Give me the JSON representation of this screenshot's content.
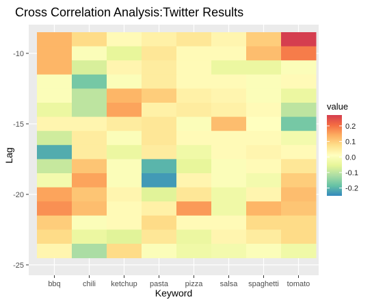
{
  "chart_data": {
    "type": "heatmap",
    "title": "Cross Correlation Analysis:Twitter Results",
    "xlabel": "Keyword",
    "ylabel": "Lag",
    "x_categories": [
      "bbq",
      "chili",
      "ketchup",
      "pasta",
      "pizza",
      "salsa",
      "spaghetti",
      "tomato"
    ],
    "y_values": [
      -9,
      -10,
      -11,
      -12,
      -13,
      -14,
      -15,
      -16,
      -17,
      -18,
      -19,
      -20,
      -21,
      -22,
      -23,
      -24
    ],
    "y_ticks": [
      -10,
      -15,
      -20,
      -25
    ],
    "y_tick_labels": [
      "-10",
      "-15",
      "-20",
      "-25"
    ],
    "ylim": [
      -25,
      -8.5
    ],
    "legend": {
      "title": "value",
      "placement": "right",
      "ticks": [
        0.2,
        0.1,
        0.0,
        -0.1,
        -0.2
      ],
      "tick_labels": [
        "0.2",
        "0.1",
        "0.0",
        "-0.1",
        "-0.2"
      ],
      "range": [
        -0.25,
        0.27
      ]
    },
    "colors": {
      "panel_background": "#ebebeb",
      "gridline": "#ffffff",
      "scale": [
        "#3288bd",
        "#66c2a5",
        "#abdda4",
        "#e6f598",
        "#ffffbf",
        "#fee08b",
        "#fdae61",
        "#f46d43",
        "#d53e4f"
      ]
    },
    "values_note_rows_top_to_bottom_lag": "-9 to -24",
    "values": [
      [
        0.13,
        0.08,
        0.02,
        0.04,
        0.06,
        0.03,
        0.1,
        0.27
      ],
      [
        0.13,
        0.0,
        -0.05,
        0.06,
        0.02,
        0.02,
        0.12,
        0.19
      ],
      [
        0.13,
        -0.07,
        0.03,
        0.05,
        0.02,
        -0.04,
        -0.04,
        0.0
      ],
      [
        0.0,
        -0.17,
        0.0,
        0.05,
        0.02,
        0.02,
        0.0,
        0.02
      ],
      [
        0.0,
        -0.1,
        0.13,
        0.1,
        0.04,
        0.03,
        0.0,
        -0.04
      ],
      [
        -0.04,
        -0.1,
        0.15,
        0.04,
        0.05,
        0.04,
        0.02,
        -0.1
      ],
      [
        0.03,
        0.03,
        0.05,
        0.06,
        0.0,
        0.12,
        0.01,
        -0.17
      ],
      [
        -0.08,
        0.05,
        0.0,
        0.06,
        0.02,
        0.02,
        0.02,
        -0.02
      ],
      [
        -0.21,
        0.05,
        -0.04,
        0.05,
        -0.03,
        0.02,
        0.03,
        0.02
      ],
      [
        -0.09,
        0.11,
        0.0,
        -0.2,
        -0.05,
        0.0,
        0.02,
        0.06
      ],
      [
        -0.02,
        0.15,
        0.0,
        -0.23,
        0.03,
        0.0,
        -0.02,
        0.1
      ],
      [
        0.15,
        0.11,
        0.03,
        -0.06,
        0.06,
        -0.03,
        0.03,
        0.12
      ],
      [
        0.17,
        0.12,
        0.02,
        0.04,
        0.16,
        -0.03,
        0.13,
        0.11
      ],
      [
        0.1,
        0.0,
        0.02,
        0.08,
        0.02,
        0.02,
        0.08,
        0.08
      ],
      [
        0.08,
        -0.04,
        -0.06,
        0.06,
        -0.04,
        0.03,
        0.05,
        0.08
      ],
      [
        0.03,
        -0.12,
        0.08,
        0.0,
        -0.03,
        -0.02,
        0.0,
        -0.03
      ]
    ]
  }
}
